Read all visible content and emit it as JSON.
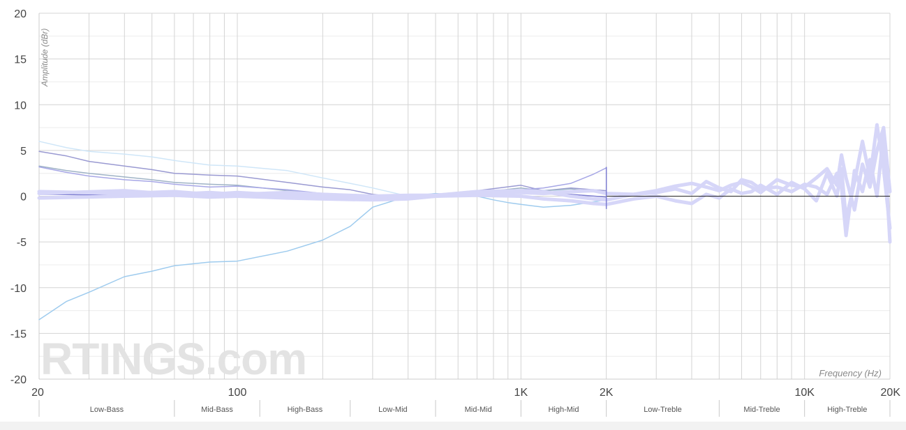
{
  "chart_data": {
    "type": "line",
    "xscale": "log",
    "xlabel": "Frequency (Hz)",
    "ylabel": "Amplitude (dBr)",
    "xlim": [
      20,
      20000
    ],
    "ylim": [
      -20,
      20
    ],
    "grid": true,
    "x_tick_labels": [
      {
        "value": 20,
        "label": "20"
      },
      {
        "value": 100,
        "label": "100"
      },
      {
        "value": 1000,
        "label": "1K"
      },
      {
        "value": 2000,
        "label": "2K"
      },
      {
        "value": 10000,
        "label": "10K"
      },
      {
        "value": 20000,
        "label": "20K"
      }
    ],
    "y_ticks": [
      20,
      15,
      10,
      5,
      0,
      -5,
      -10,
      -15,
      -20
    ],
    "bands": [
      {
        "label": "Low-Bass",
        "from": 20,
        "to": 60
      },
      {
        "label": "Mid-Bass",
        "from": 60,
        "to": 120
      },
      {
        "label": "High-Bass",
        "from": 120,
        "to": 250
      },
      {
        "label": "Low-Mid",
        "from": 250,
        "to": 500
      },
      {
        "label": "Mid-Mid",
        "from": 500,
        "to": 1000
      },
      {
        "label": "High-Mid",
        "from": 1000,
        "to": 2000
      },
      {
        "label": "Low-Treble",
        "from": 2000,
        "to": 5000
      },
      {
        "label": "Mid-Treble",
        "from": 5000,
        "to": 10000
      },
      {
        "label": "High-Treble",
        "from": 10000,
        "to": 20000
      }
    ],
    "series": [
      {
        "color": "#9ecbee",
        "width": 1.5,
        "x": [
          20,
          25,
          30,
          40,
          50,
          60,
          80,
          100,
          150,
          200,
          250,
          300,
          400,
          500,
          700,
          800,
          900,
          1000,
          1200,
          1500,
          2000
        ],
        "y": [
          -13.5,
          -11.5,
          -10.5,
          -8.8,
          -8.2,
          -7.6,
          -7.2,
          -7.1,
          -6.0,
          -4.8,
          -3.3,
          -1.2,
          0.0,
          0.3,
          0.0,
          -0.4,
          -0.7,
          -0.9,
          -1.2,
          -1.0,
          -0.4
        ]
      },
      {
        "color": "#cfe6f8",
        "width": 1.5,
        "x": [
          20,
          25,
          30,
          40,
          50,
          60,
          80,
          100,
          150,
          200,
          250,
          300,
          400,
          500,
          700,
          1000,
          1500,
          2000
        ],
        "y": [
          6.0,
          5.3,
          4.9,
          4.6,
          4.3,
          3.9,
          3.4,
          3.3,
          2.8,
          2.0,
          1.4,
          0.9,
          0.0,
          0.0,
          0.3,
          0.7,
          0.6,
          0.4
        ]
      },
      {
        "color": "#9a9ad2",
        "width": 1.5,
        "x": [
          20,
          25,
          30,
          40,
          50,
          60,
          80,
          100,
          150,
          200,
          250,
          300,
          400,
          500,
          700,
          1000,
          1200,
          1500,
          2000
        ],
        "y": [
          4.9,
          4.4,
          3.8,
          3.3,
          2.9,
          2.5,
          2.3,
          2.2,
          1.5,
          1.0,
          0.7,
          0.2,
          -0.2,
          0.0,
          0.6,
          1.2,
          0.6,
          0.9,
          0.6
        ]
      },
      {
        "color": "#9fb3c6",
        "width": 1.5,
        "x": [
          20,
          25,
          30,
          40,
          50,
          60,
          80,
          100,
          150,
          200,
          250,
          300,
          400,
          500,
          700,
          1000,
          1200,
          1500,
          2000
        ],
        "y": [
          3.3,
          2.8,
          2.5,
          2.1,
          1.8,
          1.5,
          1.3,
          1.2,
          0.6,
          0.3,
          0.1,
          0.0,
          -0.2,
          0.0,
          0.4,
          0.9,
          0.6,
          0.8,
          0.3
        ]
      },
      {
        "color": "#a7a7e6",
        "width": 1.5,
        "x": [
          20,
          25,
          30,
          40,
          50,
          60,
          80,
          100,
          150,
          200,
          250,
          300,
          400,
          500,
          700,
          1000,
          1200,
          1500,
          1800,
          2000
        ],
        "y": [
          3.2,
          2.6,
          2.2,
          1.8,
          1.6,
          1.3,
          1.0,
          1.1,
          0.7,
          0.3,
          0.1,
          -0.1,
          -0.3,
          0.0,
          0.4,
          0.7,
          0.9,
          1.4,
          2.4,
          3.1
        ]
      },
      {
        "color": "#7b7bd0",
        "width": 1.5,
        "x": [
          20,
          40,
          60,
          100,
          150,
          200,
          300,
          400,
          500,
          700,
          1000,
          1200,
          1500,
          2000
        ],
        "y": [
          0.2,
          0.1,
          0.0,
          0.3,
          0.0,
          -0.2,
          -0.5,
          -0.4,
          0.0,
          0.4,
          0.5,
          0.4,
          0.2,
          -0.1
        ]
      },
      {
        "color": "#d6d6f8",
        "width": 5,
        "x": [
          20,
          40,
          60,
          80,
          100,
          150,
          200,
          300,
          400,
          500,
          700,
          1000,
          1200,
          1500,
          1800,
          2000,
          2500,
          3000,
          3500,
          4000,
          4500,
          5000,
          5500,
          6000,
          6500,
          7000,
          8000,
          9000,
          10000,
          11000,
          12000,
          13000,
          13500,
          14000,
          15000,
          16000,
          17000,
          18000,
          19000,
          20000
        ],
        "y": [
          0.5,
          0.3,
          0.5,
          0.2,
          0.4,
          0.1,
          0.0,
          -0.3,
          -0.2,
          0.0,
          0.3,
          0.4,
          0.3,
          0.5,
          0.6,
          0.3,
          0.2,
          0.6,
          1.1,
          1.4,
          1.0,
          0.6,
          1.2,
          1.5,
          1.0,
          0.4,
          1.8,
          1.2,
          1.0,
          2.0,
          3.0,
          1.2,
          4.5,
          2.0,
          -1.5,
          3.5,
          1.0,
          5.0,
          7.5,
          0.5
        ]
      },
      {
        "color": "#d6d6f8",
        "width": 5,
        "x": [
          20,
          40,
          60,
          80,
          100,
          150,
          200,
          300,
          400,
          500,
          700,
          1000,
          1200,
          1500,
          1800,
          2000,
          2500,
          3000,
          3500,
          4000,
          4500,
          5000,
          5500,
          6000,
          6500,
          7000,
          8000,
          9000,
          10000,
          11000,
          12000,
          13000,
          13500,
          14000,
          15000,
          16000,
          17000,
          18000,
          19000,
          20000
        ],
        "y": [
          -0.2,
          0.0,
          0.1,
          -0.1,
          0.0,
          -0.2,
          -0.3,
          -0.4,
          -0.3,
          0.0,
          0.1,
          0.0,
          -0.3,
          -0.5,
          -0.8,
          -0.9,
          -0.3,
          0.0,
          -0.5,
          -0.8,
          0.2,
          -0.2,
          0.8,
          0.3,
          0.5,
          1.2,
          0.2,
          1.5,
          0.8,
          -0.5,
          2.5,
          0.0,
          3.0,
          -2.5,
          1.5,
          6.0,
          2.0,
          7.8,
          3.0,
          -3.5
        ]
      },
      {
        "color": "#d6d6f8",
        "width": 5,
        "x": [
          20,
          40,
          60,
          80,
          100,
          150,
          200,
          300,
          400,
          500,
          700,
          1000,
          1200,
          1500,
          1800,
          2000,
          2500,
          3000,
          3500,
          4000,
          4500,
          5000,
          5500,
          6000,
          6500,
          7000,
          8000,
          9000,
          10000,
          11000,
          12000,
          13000,
          13500,
          14000,
          15000,
          16000,
          17000,
          18000,
          19000,
          20000
        ],
        "y": [
          0.3,
          0.6,
          0.2,
          0.4,
          0.2,
          0.4,
          0.2,
          0.0,
          0.1,
          0.1,
          0.5,
          0.6,
          0.5,
          0.0,
          -0.3,
          -0.4,
          0.2,
          0.4,
          0.8,
          0.3,
          1.6,
          0.9,
          0.5,
          1.8,
          1.5,
          0.8,
          1.0,
          0.5,
          1.3,
          1.0,
          0.2,
          2.5,
          1.0,
          -4.3,
          2.8,
          0.5,
          4.0,
          0.0,
          7.0,
          -5.0
        ]
      }
    ],
    "watermark": "RTINGS.com"
  }
}
